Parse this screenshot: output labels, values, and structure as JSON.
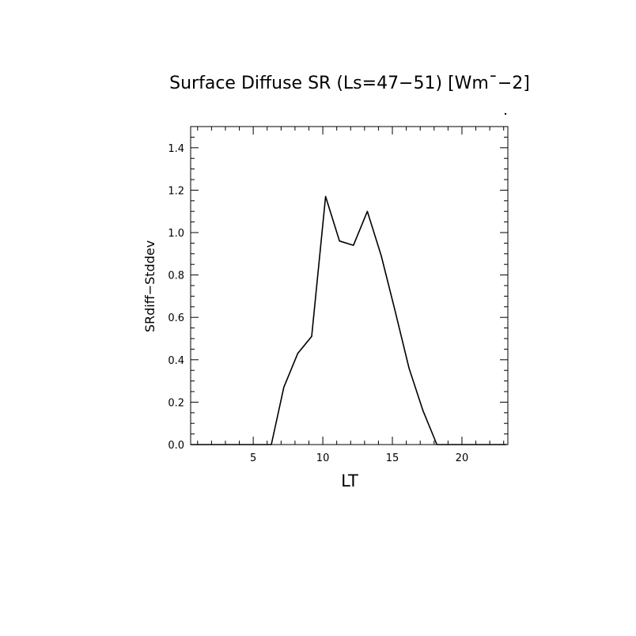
{
  "chart_data": {
    "type": "line",
    "title": "Surface Diffuse SR (Ls=47−51) [Wm¯−2]",
    "xlabel": "LT",
    "ylabel": "SRdiff−Stddev",
    "xlim": [
      0.5,
      23.3
    ],
    "ylim": [
      0.0,
      1.5
    ],
    "x_ticks": [
      5,
      10,
      15,
      20
    ],
    "x_tick_labels": [
      "5",
      "10",
      "15",
      "20"
    ],
    "y_ticks": [
      0.0,
      0.2,
      0.4,
      0.6,
      0.8,
      1.0,
      1.2,
      1.4
    ],
    "y_tick_labels": [
      "0.0",
      "0.2",
      "0.4",
      "0.6",
      "0.8",
      "1.0",
      "1.2",
      "1.4"
    ],
    "grid": false,
    "series": [
      {
        "x": [
          0.5,
          1.5,
          2.5,
          3.5,
          4.5,
          5.5,
          6.3,
          7.2,
          8.2,
          9.2,
          10.2,
          11.2,
          12.2,
          13.2,
          14.2,
          15.2,
          16.2,
          17.2,
          18.2,
          19.2,
          20.2,
          21.2,
          22.2,
          23.2
        ],
        "y": [
          0.0,
          0.0,
          0.0,
          0.0,
          0.0,
          0.0,
          0.0,
          0.27,
          0.43,
          0.51,
          1.17,
          0.96,
          0.94,
          1.1,
          0.89,
          0.63,
          0.36,
          0.16,
          0.0,
          0.0,
          0.0,
          0.0,
          0.0,
          0.0
        ]
      }
    ],
    "colors": {
      "line": "#000000",
      "axes": "#000000",
      "background": "#ffffff"
    }
  }
}
